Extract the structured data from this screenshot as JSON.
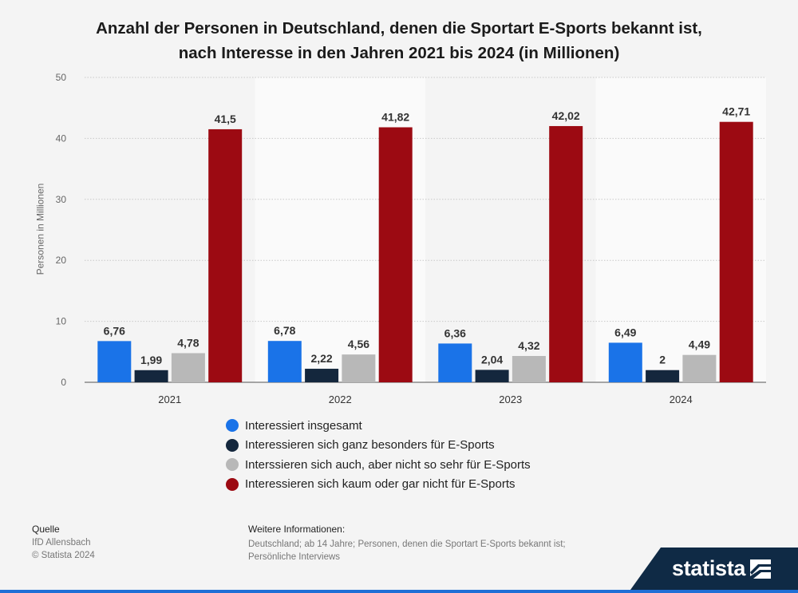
{
  "chart_data": {
    "type": "bar",
    "title": [
      "Anzahl der Personen in Deutschland, denen die Sportart E-Sports bekannt ist,",
      "nach Interesse in den Jahren 2021 bis 2024 (in Millionen)"
    ],
    "xlabel": "",
    "ylabel": "Personen in Millionen",
    "ylim": [
      0,
      50
    ],
    "yticks": [
      0,
      10,
      20,
      30,
      40,
      50
    ],
    "grid": true,
    "legend_position": "bottom",
    "categories": [
      "2021",
      "2022",
      "2023",
      "2024"
    ],
    "series": [
      {
        "name": "Interessiert insgesamt",
        "color": "#1a73e8",
        "values": [
          6.76,
          6.78,
          6.36,
          6.49
        ],
        "labels": [
          "6,76",
          "6,78",
          "6,36",
          "6,49"
        ]
      },
      {
        "name": "Interessieren sich ganz besonders für E-Sports",
        "color": "#14273d",
        "values": [
          1.99,
          2.22,
          2.04,
          2
        ],
        "labels": [
          "1,99",
          "2,22",
          "2,04",
          "2"
        ]
      },
      {
        "name": "Interssieren sich auch, aber nicht so sehr für E-Sports",
        "color": "#b8b8b8",
        "values": [
          4.78,
          4.56,
          4.32,
          4.49
        ],
        "labels": [
          "4,78",
          "4,56",
          "4,32",
          "4,49"
        ]
      },
      {
        "name": "Interessieren sich kaum oder gar nicht für E-Sports",
        "color": "#9c0a12",
        "values": [
          41.5,
          41.82,
          42.02,
          42.71
        ],
        "labels": [
          "41,5",
          "41,82",
          "42,02",
          "42,71"
        ]
      }
    ]
  },
  "footer": {
    "source_label": "Quelle",
    "source_lines": [
      "IfD Allensbach",
      "© Statista 2024"
    ],
    "info_label": "Weitere Informationen:",
    "info_text": "Deutschland; ab 14 Jahre; Personen, denen die Sportart E-Sports bekannt ist; Persönliche Interviews"
  },
  "brand": {
    "name": "statista",
    "color": "#0f2a45",
    "accent": "#1f6fd6"
  }
}
